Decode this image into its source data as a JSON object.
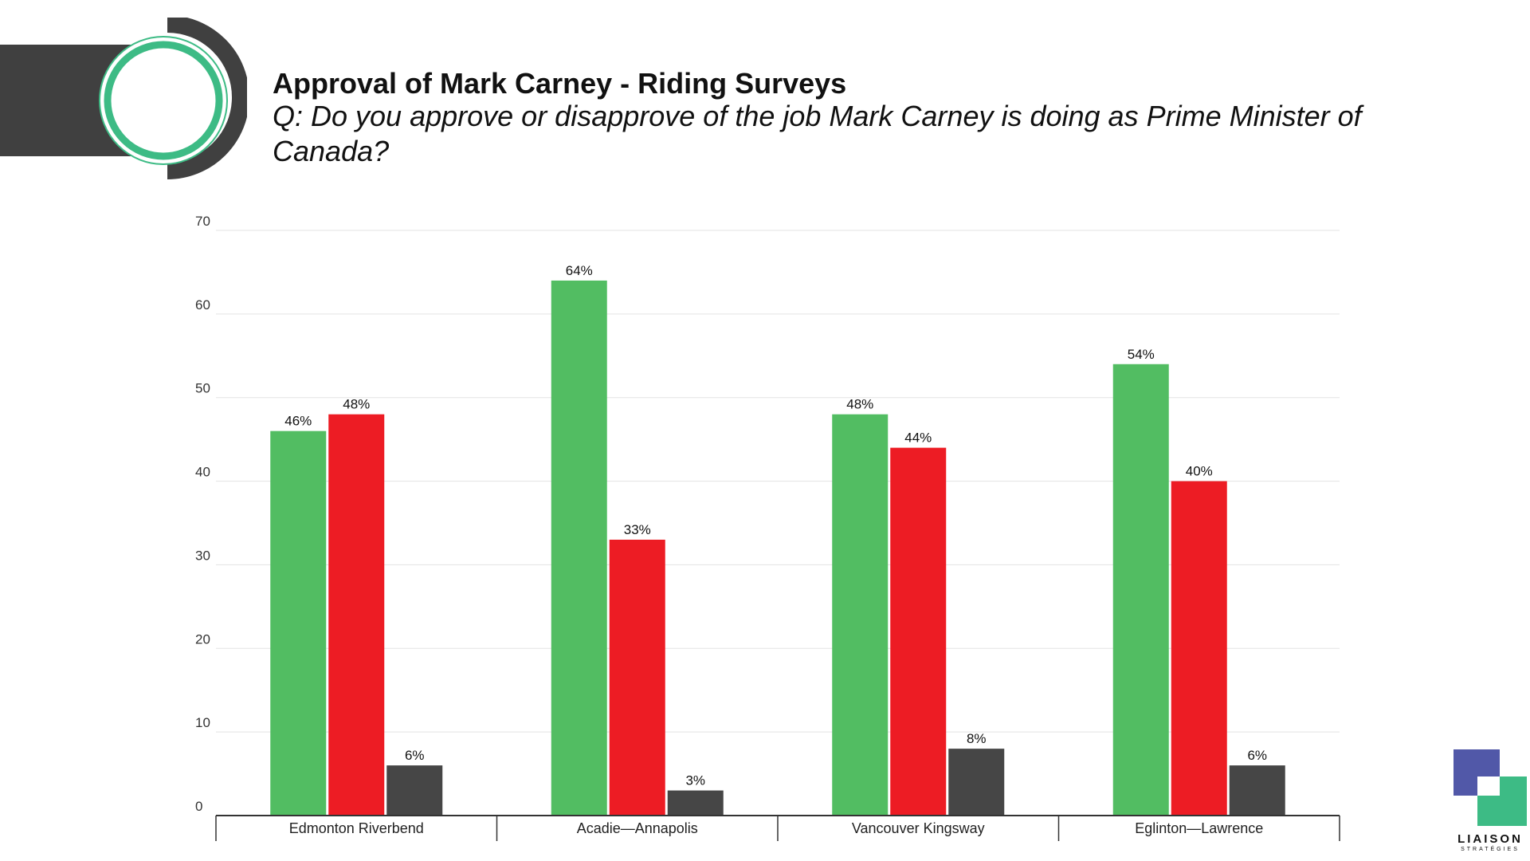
{
  "title": "Approval of Mark Carney - Riding Surveys",
  "subtitle": "Q: Do you approve or disapprove of the job Mark Carney is doing as Prime Minister of Canada?",
  "brand": {
    "name": "LIAISON",
    "tagline": "STRATÉGIES"
  },
  "colors": {
    "approve": "#52bd62",
    "disapprove": "#ed1c24",
    "unsure": "#464646",
    "accent": "#3dbb85",
    "logo_blue": "#5158a8"
  },
  "chart_data": {
    "type": "bar",
    "categories": [
      "Edmonton Riverbend",
      "Acadie—Annapolis",
      "Vancouver Kingsway",
      "Eglinton—Lawrence"
    ],
    "series": [
      {
        "values": [
          46,
          64,
          48,
          54
        ],
        "color": "#52bd62"
      },
      {
        "values": [
          48,
          33,
          44,
          40
        ],
        "color": "#ed1c24"
      },
      {
        "values": [
          6,
          3,
          8,
          6
        ],
        "color": "#464646"
      }
    ],
    "data_labels": [
      [
        "46%",
        "64%",
        "48%",
        "54%"
      ],
      [
        "48%",
        "33%",
        "44%",
        "40%"
      ],
      [
        "6%",
        "3%",
        "8%",
        "6%"
      ]
    ],
    "y_ticks": [
      "0",
      "10",
      "20",
      "30",
      "40",
      "50",
      "60",
      "70"
    ],
    "ylim": [
      0,
      70
    ],
    "grid": true,
    "legend": "none"
  }
}
